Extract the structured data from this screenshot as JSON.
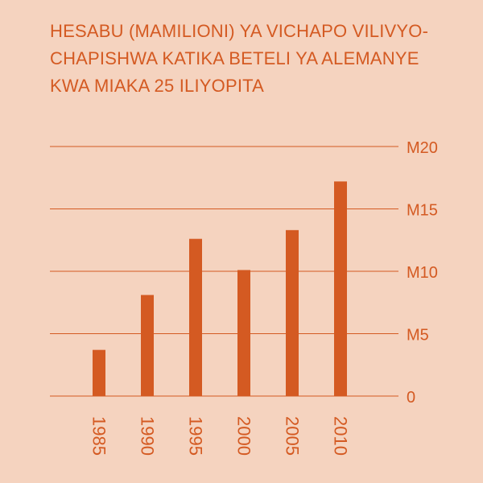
{
  "chart_data": {
    "type": "bar",
    "title_lines": [
      "HESABU (MAMILIONI) YA VICHAPO VILIVYO-",
      "CHAPISHWA KATIKA BETELI YA ALEMANYE",
      "KWA MIAKA 25 ILIYOPITA"
    ],
    "categories": [
      "1985",
      "1990",
      "1995",
      "2000",
      "2005",
      "2010"
    ],
    "values": [
      3.7,
      8.1,
      12.6,
      10.1,
      13.3,
      17.2
    ],
    "ylim": [
      0,
      20
    ],
    "yticks": [
      0,
      5,
      10,
      15,
      20
    ],
    "ytick_labels": [
      "0",
      "M5",
      "M10",
      "M15",
      "M20"
    ],
    "grid": true,
    "xlabel": "",
    "ylabel": ""
  },
  "colors": {
    "background": "#f5d3bf",
    "bar": "#d45a22",
    "text": "#d45a22",
    "grid": "#d45a22"
  }
}
